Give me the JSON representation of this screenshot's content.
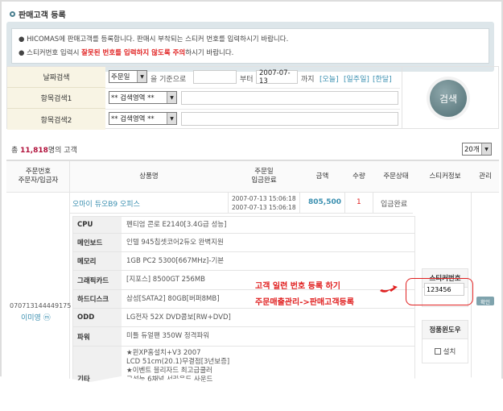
{
  "title": "판매고객 등록",
  "notice": {
    "line1": "HICOMAS에 판매고객를 등록합니다. 판매시 부착되는 스티커 번호를 입력하시기 바랍니다.",
    "line2_pre": "스티커번호 입력시 ",
    "line2_warn": "잘못된 번호를 입력하지 않도록 주의",
    "line2_post": "하시기 바랍니다."
  },
  "search": {
    "date_label": "날짜검색",
    "date_type": "주문일",
    "basis_text": "을 기준으로",
    "from_value": "",
    "from_text": "부터",
    "to_value": "2007-07-13",
    "to_text": "까지",
    "quick": [
      "[오늘]",
      "[일주일]",
      "[한달]"
    ],
    "item1_label": "항목검색1",
    "item1_select": "** 검색영역 **",
    "item1_value": "",
    "item2_label": "항목검색2",
    "item2_select": "** 검색영역 **",
    "item2_value": "",
    "button": "검색"
  },
  "count": {
    "prefix": "총 ",
    "number": "11,818",
    "suffix": "명의 고객"
  },
  "page_size": "20개",
  "table": {
    "headers": [
      "주문번호\n주문자/입금자",
      "상품명",
      "주문일\n입금완료",
      "금액",
      "수량",
      "주문상태",
      "스티커정보",
      "관리"
    ],
    "row": {
      "order_no": "070713144449175",
      "customer": "이미영",
      "product": "오마이 듀오B9 오피스",
      "order_date": "2007-07-13 15:06:18",
      "paid_date": "2007-07-13 15:06:18",
      "amount": "805,500",
      "qty": "1",
      "status": "입금완료",
      "specs": [
        {
          "k": "CPU",
          "v": "펜티엄 콘로 E2140[3.4G급 성능]"
        },
        {
          "k": "메인보드",
          "v": "인텔 945칩셋코어2듀오 완벽지원"
        },
        {
          "k": "메모리",
          "v": "1GB PC2 5300[667MHz]-기본"
        },
        {
          "k": "그래픽카드",
          "v": "[지포스] 8500GT 256MB"
        },
        {
          "k": "하드디스크",
          "v": "삼성[SATA2] 80GB[버퍼8MB]"
        },
        {
          "k": "ODD",
          "v": "LG전자 52X DVD콤보[RW+DVD]"
        },
        {
          "k": "파워",
          "v": "미틀 듀얼팬 350W 정격파워"
        },
        {
          "k": "기타",
          "v": "★윈XP홈설치+V3 2007\nLCD 51cm(20.1)무결점[3년보증]\n★이벤트 블리자드 최고급쿨러\n고성능 6채널 서라운드 사운드\n리얼텍 100Mbps 초고속 랜내장\n슬림형 LCD창 블랙J-7L\n고감각 고급형 멀티미디어 키보드"
        }
      ],
      "sticker_label": "스티커번호",
      "sticker_value": "123456",
      "confirm": "확인",
      "windows_label": "정품윈도우",
      "install": "설치"
    }
  },
  "annotation": {
    "line1": "고객 일련 번호 등록 하기",
    "line2": "주문매출관리->판매고객등록"
  },
  "colors": {
    "accent": "#3a8fb0",
    "warning": "#e02020"
  }
}
